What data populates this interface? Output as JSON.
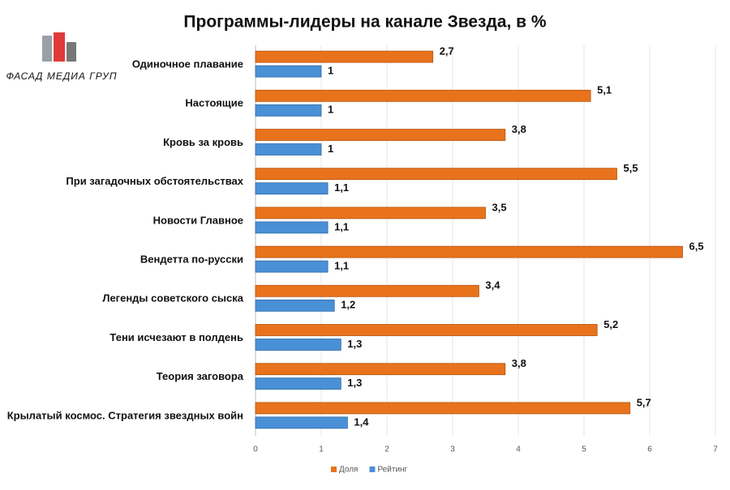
{
  "logo": {
    "text": "ФАСАД МЕДИА ГРУП"
  },
  "chart_data": {
    "type": "hbar",
    "title": "Программы-лидеры на канале Звезда, в %",
    "categories": [
      "Одиночное плавание",
      "Настоящие",
      "Кровь за кровь",
      "При загадочных обстоятельствах",
      "Новости Главное",
      "Вендетта по-русски",
      "Легенды советского сыска",
      "Тени исчезают в полдень",
      "Теория заговора",
      "Крылатый космос. Стратегия звездных войн"
    ],
    "series": [
      {
        "name": "Доля",
        "color": "#e8731c",
        "values": [
          2.7,
          5.1,
          3.8,
          5.5,
          3.5,
          6.5,
          3.4,
          5.2,
          3.8,
          5.7
        ],
        "value_labels": [
          "2,7",
          "5,1",
          "3,8",
          "5,5",
          "3,5",
          "6,5",
          "3,4",
          "5,2",
          "3,8",
          "5,7"
        ]
      },
      {
        "name": "Рейтинг",
        "color": "#4a90d6",
        "values": [
          1,
          1,
          1,
          1.1,
          1.1,
          1.1,
          1.2,
          1.3,
          1.3,
          1.4
        ],
        "value_labels": [
          "1",
          "1",
          "1",
          "1,1",
          "1,1",
          "1,1",
          "1,2",
          "1,3",
          "1,3",
          "1,4"
        ]
      }
    ],
    "xlim": [
      0,
      7
    ],
    "xticks": [
      0,
      1,
      2,
      3,
      4,
      5,
      6,
      7
    ],
    "grid": true,
    "legend": "bottom"
  }
}
